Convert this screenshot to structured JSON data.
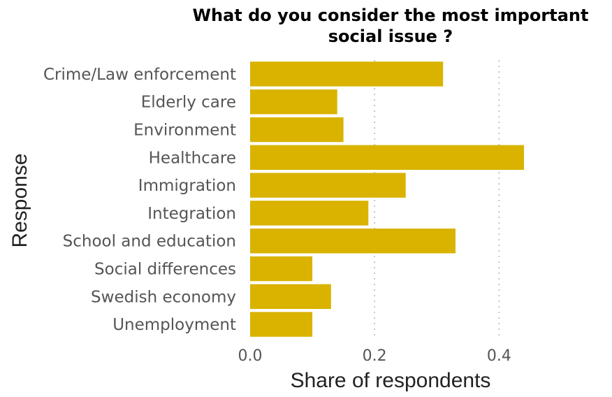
{
  "chart_data": {
    "type": "bar",
    "orientation": "horizontal",
    "title_lines": [
      "What do you consider the most important",
      "social issue ?"
    ],
    "xlabel": "Share of respondents",
    "ylabel": "Response",
    "categories": [
      "Crime/Law enforcement",
      "Elderly care",
      "Environment",
      "Healthcare",
      "Immigration",
      "Integration",
      "School and education",
      "Social differences",
      "Swedish economy",
      "Unemployment"
    ],
    "values": [
      0.31,
      0.14,
      0.15,
      0.44,
      0.25,
      0.19,
      0.33,
      0.1,
      0.13,
      0.1
    ],
    "xlim": [
      0,
      0.44
    ],
    "xticks": [
      0.0,
      0.2,
      0.4
    ],
    "xtick_labels": [
      "0.0",
      "0.2",
      "0.4"
    ],
    "grid": "vertical dotted at major ticks",
    "bar_color": "#D9B300",
    "legend": "none"
  }
}
